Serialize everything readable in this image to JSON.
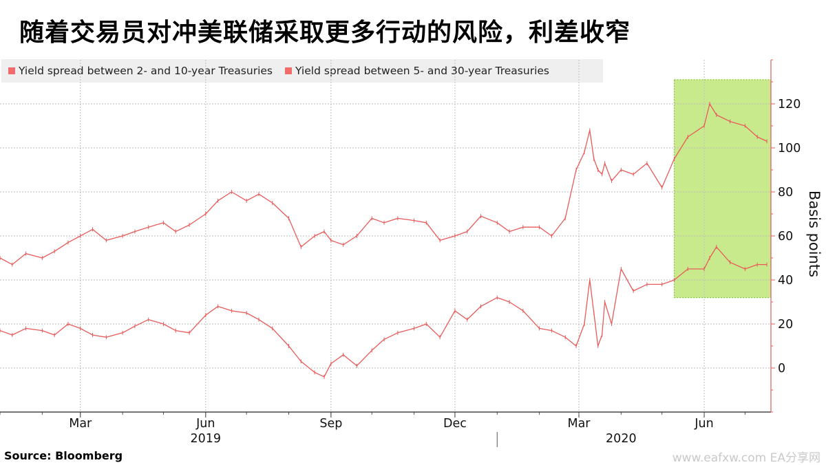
{
  "title": "随着交易员对冲美联储采取更多行动的风险，利差收窄",
  "legend": {
    "items": [
      {
        "label": "Yield spread between 2- and 10-year Treasuries",
        "color": "#f26b6b"
      },
      {
        "label": "Yield spread between 5- and 30-year Treasuries",
        "color": "#f26b6b"
      }
    ]
  },
  "source": "Source:  Bloomberg",
  "watermark": "www.eafxw.com  EA分享网",
  "chart_data": {
    "type": "line",
    "ylabel": "Basis points",
    "ylim": [
      -20,
      140
    ],
    "yticks": [
      0,
      20,
      40,
      60,
      80,
      100,
      120
    ],
    "xlim": [
      "2019-01-01",
      "2020-07-20"
    ],
    "month_ticks": [
      "Mar",
      "Jun",
      "Sep",
      "Dec",
      "Mar",
      "Jun"
    ],
    "month_tick_dates": [
      "2019-03-01",
      "2019-06-01",
      "2019-09-01",
      "2019-12-01",
      "2020-03-01",
      "2020-06-01"
    ],
    "years": [
      {
        "label": "2019",
        "date": "2019-06-01"
      },
      {
        "label": "2020",
        "date": "2020-04-01"
      }
    ],
    "grid": true,
    "highlight": {
      "x_start": "2020-05-10",
      "x_end": "2020-07-20",
      "y_min": 32,
      "y_max": 131,
      "color": "#c9ea8c"
    },
    "series": [
      {
        "name": "Yield spread between 2- and 10-year Treasuries",
        "x": [
          "2019-01-01",
          "2019-01-10",
          "2019-01-20",
          "2019-02-01",
          "2019-02-10",
          "2019-02-20",
          "2019-03-01",
          "2019-03-10",
          "2019-03-20",
          "2019-04-01",
          "2019-04-10",
          "2019-04-20",
          "2019-05-01",
          "2019-05-10",
          "2019-05-20",
          "2019-06-01",
          "2019-06-10",
          "2019-06-20",
          "2019-07-01",
          "2019-07-10",
          "2019-07-20",
          "2019-08-01",
          "2019-08-10",
          "2019-08-20",
          "2019-08-27",
          "2019-09-01",
          "2019-09-10",
          "2019-09-20",
          "2019-10-01",
          "2019-10-10",
          "2019-10-20",
          "2019-11-01",
          "2019-11-10",
          "2019-11-20",
          "2019-12-01",
          "2019-12-10",
          "2019-12-20",
          "2020-01-01",
          "2020-01-10",
          "2020-01-20",
          "2020-02-01",
          "2020-02-10",
          "2020-02-20",
          "2020-02-28",
          "2020-03-05",
          "2020-03-09",
          "2020-03-12",
          "2020-03-15",
          "2020-03-18",
          "2020-03-20",
          "2020-03-25",
          "2020-04-01",
          "2020-04-10",
          "2020-04-20",
          "2020-05-01",
          "2020-05-10",
          "2020-05-20",
          "2020-06-01",
          "2020-06-05",
          "2020-06-10",
          "2020-06-20",
          "2020-07-01",
          "2020-07-10",
          "2020-07-17"
        ],
        "values": [
          17,
          15,
          18,
          17,
          15,
          20,
          18,
          15,
          14,
          16,
          19,
          22,
          20,
          17,
          16,
          24,
          28,
          26,
          25,
          22,
          18,
          10,
          3,
          -2,
          -4,
          2,
          6,
          1,
          8,
          13,
          16,
          18,
          20,
          14,
          26,
          22,
          28,
          32,
          30,
          26,
          18,
          17,
          14,
          10,
          20,
          40,
          25,
          10,
          15,
          30,
          20,
          45,
          35,
          38,
          38,
          40,
          45,
          45,
          50,
          55,
          48,
          45,
          47,
          47
        ]
      },
      {
        "name": "Yield spread between 5- and 30-year Treasuries",
        "x": [
          "2019-01-01",
          "2019-01-10",
          "2019-01-20",
          "2019-02-01",
          "2019-02-10",
          "2019-02-20",
          "2019-03-01",
          "2019-03-10",
          "2019-03-20",
          "2019-04-01",
          "2019-04-10",
          "2019-04-20",
          "2019-05-01",
          "2019-05-10",
          "2019-05-20",
          "2019-06-01",
          "2019-06-10",
          "2019-06-20",
          "2019-07-01",
          "2019-07-10",
          "2019-07-20",
          "2019-08-01",
          "2019-08-10",
          "2019-08-20",
          "2019-08-27",
          "2019-09-01",
          "2019-09-10",
          "2019-09-20",
          "2019-10-01",
          "2019-10-10",
          "2019-10-20",
          "2019-11-01",
          "2019-11-10",
          "2019-11-20",
          "2019-12-01",
          "2019-12-10",
          "2019-12-20",
          "2020-01-01",
          "2020-01-10",
          "2020-01-20",
          "2020-02-01",
          "2020-02-10",
          "2020-02-20",
          "2020-02-28",
          "2020-03-05",
          "2020-03-09",
          "2020-03-12",
          "2020-03-15",
          "2020-03-18",
          "2020-03-20",
          "2020-03-25",
          "2020-04-01",
          "2020-04-10",
          "2020-04-20",
          "2020-05-01",
          "2020-05-10",
          "2020-05-20",
          "2020-06-01",
          "2020-06-05",
          "2020-06-10",
          "2020-06-20",
          "2020-07-01",
          "2020-07-10",
          "2020-07-17"
        ],
        "values": [
          50,
          47,
          52,
          50,
          53,
          57,
          60,
          63,
          58,
          60,
          62,
          64,
          66,
          62,
          65,
          70,
          76,
          80,
          76,
          79,
          75,
          68,
          55,
          60,
          62,
          58,
          56,
          60,
          68,
          66,
          68,
          67,
          66,
          58,
          60,
          62,
          69,
          66,
          62,
          64,
          64,
          60,
          68,
          90,
          98,
          108,
          95,
          90,
          88,
          93,
          85,
          90,
          88,
          93,
          82,
          95,
          105,
          110,
          120,
          115,
          112,
          110,
          105,
          103
        ]
      }
    ]
  }
}
